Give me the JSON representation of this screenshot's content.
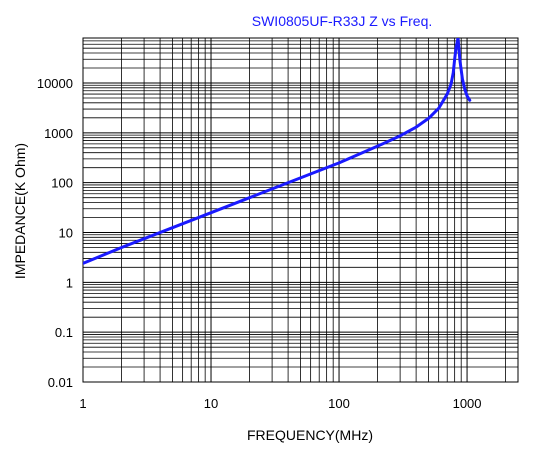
{
  "chart_data": {
    "type": "line",
    "title": "SWI0805UF-R33J Z vs Freq.",
    "xlabel": "FREQUENCY(MHz)",
    "ylabel": "IMPEDANCE(K Ohm)",
    "x_scale": "log",
    "y_scale": "log",
    "xlim": [
      1,
      2500
    ],
    "ylim": [
      0.01,
      80000
    ],
    "x_ticks": [
      {
        "value": 1,
        "label": "1"
      },
      {
        "value": 10,
        "label": "10"
      },
      {
        "value": 100,
        "label": "100"
      },
      {
        "value": 1000,
        "label": "1000"
      }
    ],
    "y_ticks": [
      {
        "value": 0.01,
        "label": "0.01"
      },
      {
        "value": 0.1,
        "label": "0.1"
      },
      {
        "value": 1,
        "label": "1"
      },
      {
        "value": 10,
        "label": "10"
      },
      {
        "value": 100,
        "label": "100"
      },
      {
        "value": 1000,
        "label": "1000"
      },
      {
        "value": 10000,
        "label": "10000"
      }
    ],
    "grid": true,
    "legend": "none",
    "line_color": "#1a1aff",
    "series": [
      {
        "x": [
          1,
          2,
          5,
          10,
          20,
          50,
          100,
          200,
          300,
          400,
          500,
          600,
          700,
          750,
          780,
          800,
          820,
          850,
          880,
          920,
          960,
          1000,
          1050
        ],
        "y": [
          2.4,
          5,
          12.5,
          25,
          50,
          125,
          250,
          540,
          870,
          1300,
          1950,
          3100,
          6000,
          9500,
          16000,
          30000,
          50000,
          80000,
          28000,
          12000,
          7500,
          5500,
          4500
        ]
      }
    ]
  }
}
